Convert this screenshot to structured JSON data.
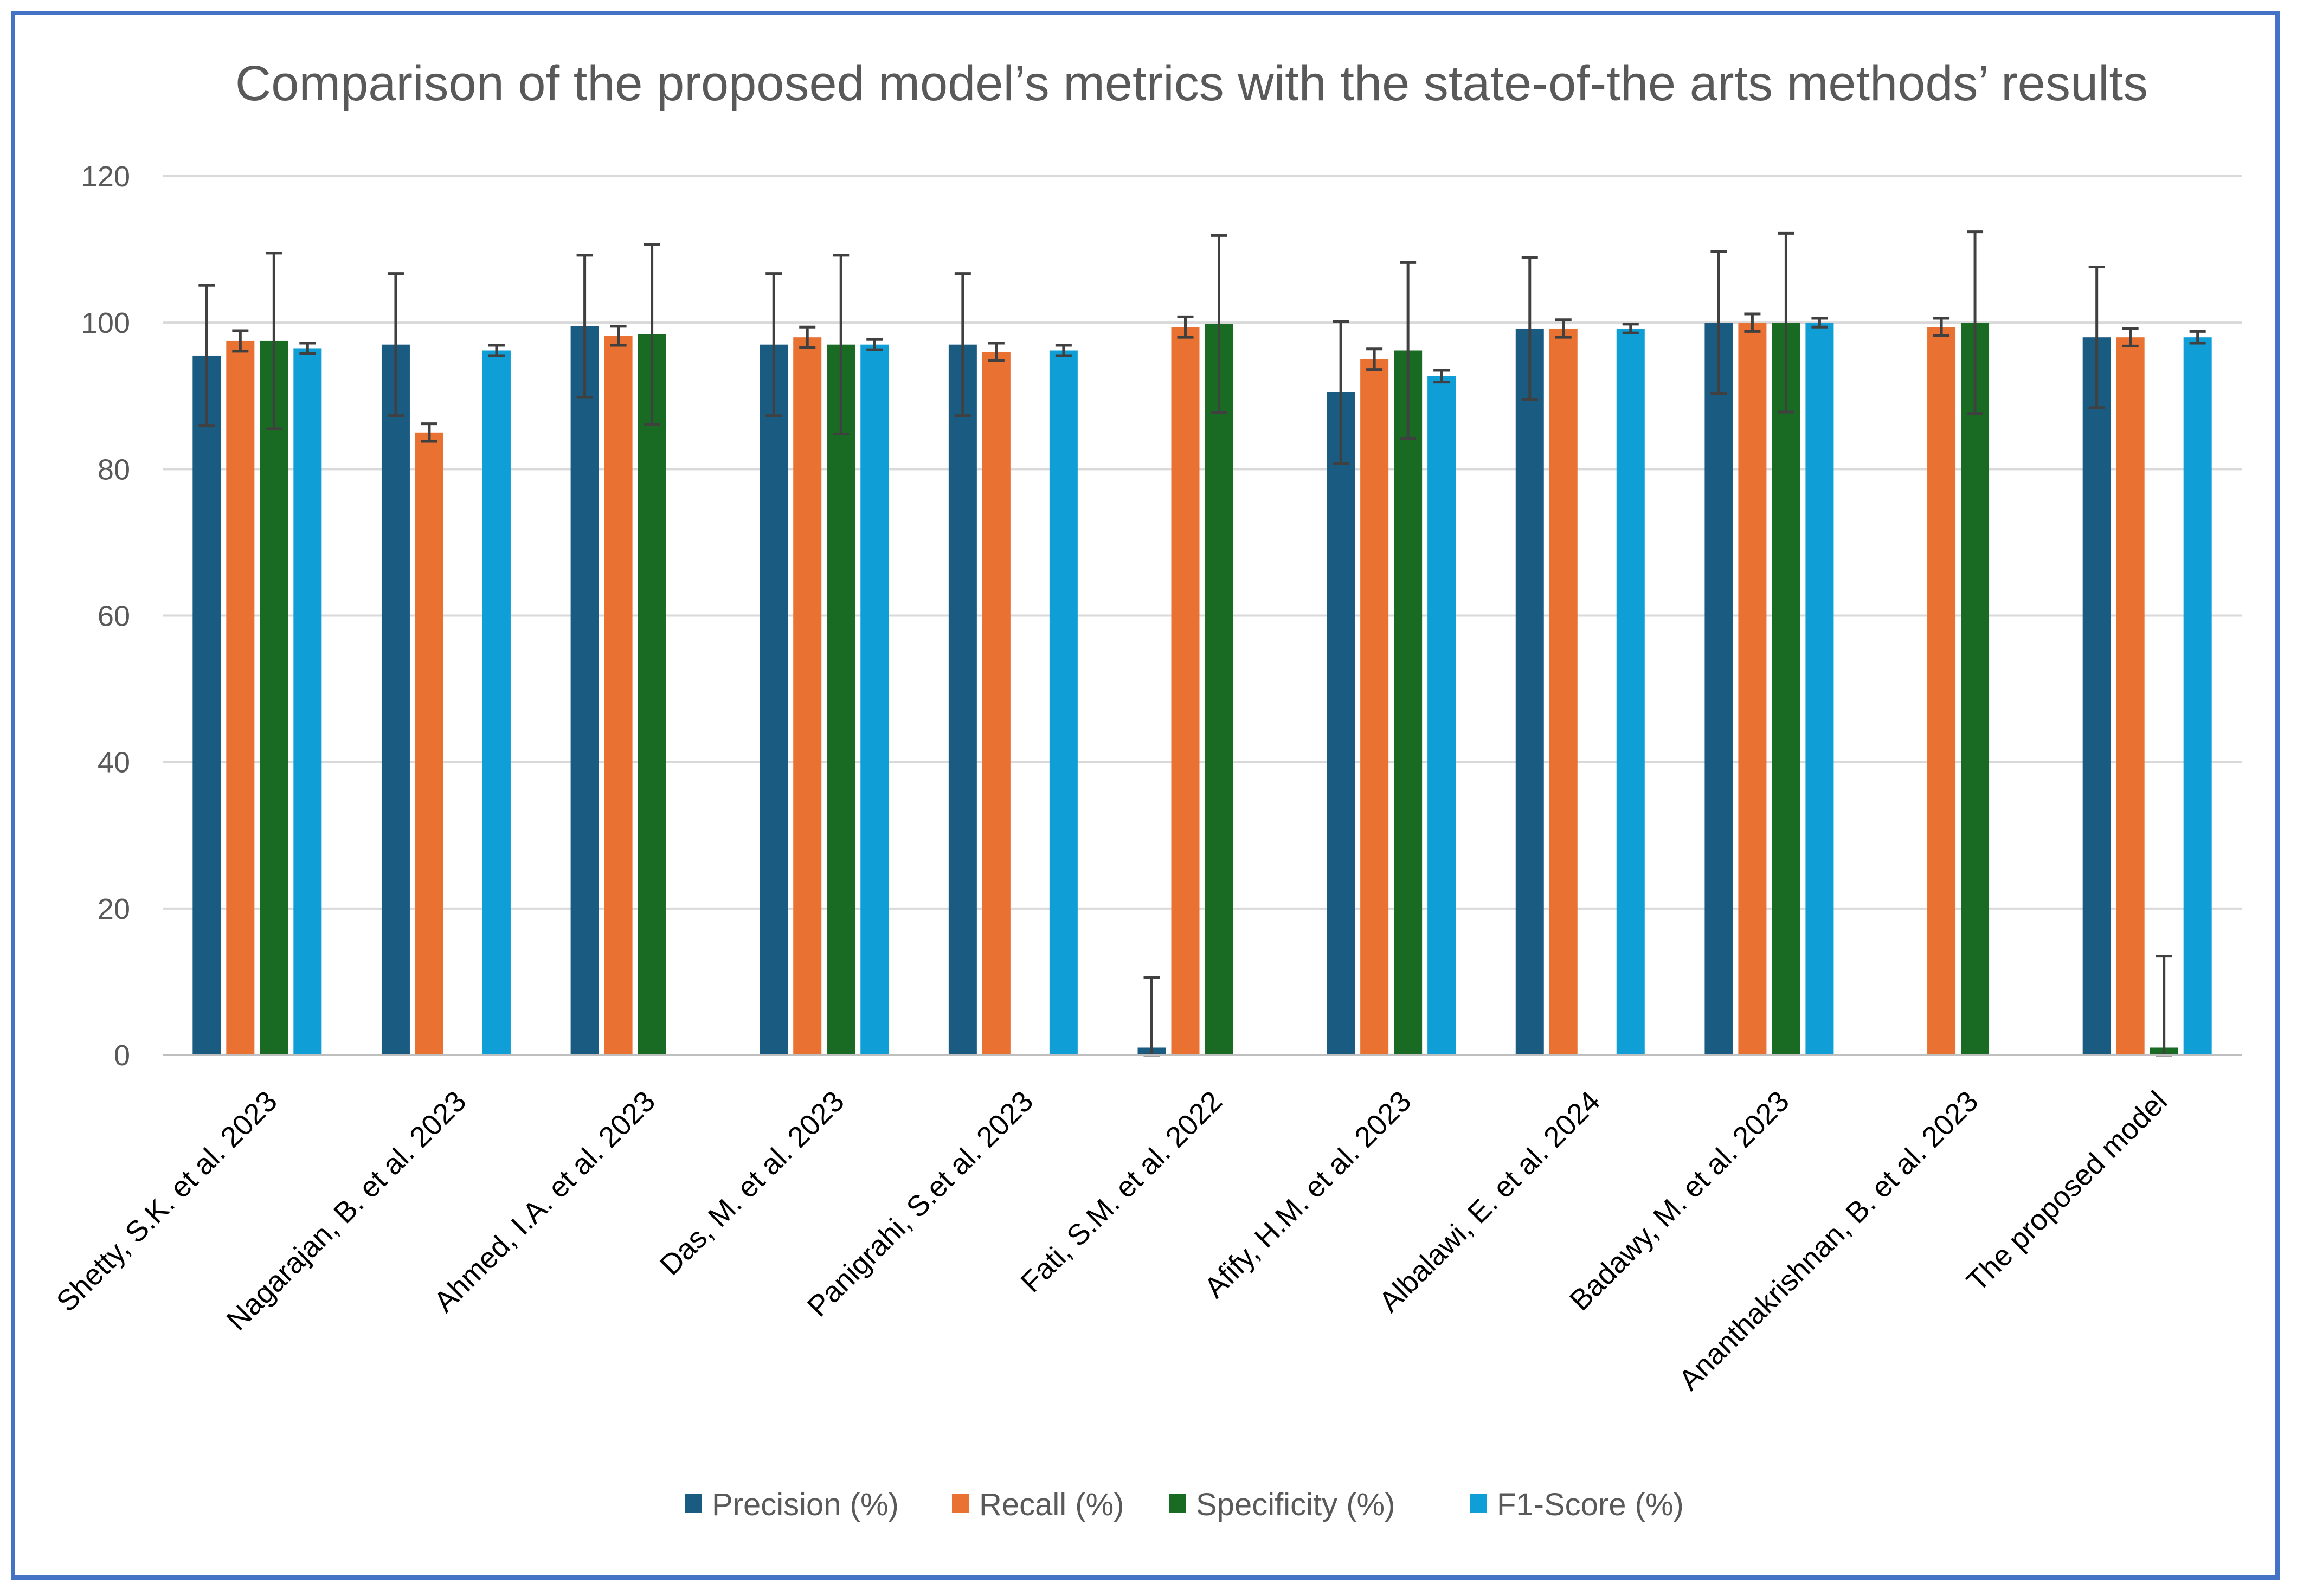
{
  "chart_data": {
    "type": "bar",
    "title": "Comparison of the proposed model’s metrics with the state-of-the arts methods’ results",
    "xlabel": "",
    "ylabel": "",
    "ylim": [
      0,
      120
    ],
    "yticks": [
      0,
      20,
      40,
      60,
      80,
      100,
      120
    ],
    "grid": true,
    "legend_position": "bottom",
    "categories": [
      "Shetty, S.K. et al. 2023",
      "Nagarajan, B. et al. 2023",
      "Ahmed, I.A. et al. 2023",
      "Das, M. et al. 2023",
      "Panigrahi, S.et al. 2023",
      "Fati, S.M. et al. 2022",
      "Afify, H.M. et al. 2023",
      "Albalawi, E. et al. 2024",
      "Badawy, M. et al. 2023",
      "Ananthakrishnan, B. et al. 2023",
      "The proposed model"
    ],
    "series": [
      {
        "name": "Precision (%)",
        "color": "#1a5b82",
        "values": [
          95.5,
          97,
          99.5,
          97,
          97,
          1,
          90.5,
          99.2,
          100,
          null,
          98
        ],
        "errors": [
          9.6,
          9.7,
          9.7,
          9.7,
          9.7,
          9.6,
          9.7,
          9.7,
          9.7,
          null,
          9.6
        ]
      },
      {
        "name": "Recall (%)",
        "color": "#e97132",
        "values": [
          97.5,
          85,
          98.2,
          98,
          96,
          99.4,
          95,
          99.2,
          100,
          99.4,
          98
        ],
        "errors": [
          1.4,
          1.2,
          1.3,
          1.4,
          1.2,
          1.4,
          1.4,
          1.2,
          1.2,
          1.2,
          1.2
        ]
      },
      {
        "name": "Specificity (%)",
        "color": "#196b24",
        "values": [
          97.5,
          null,
          98.4,
          97,
          null,
          99.8,
          96.2,
          null,
          100,
          100,
          1
        ],
        "errors": [
          12,
          null,
          12.3,
          12.2,
          null,
          12.1,
          12,
          null,
          12.2,
          12.4,
          12.5
        ]
      },
      {
        "name": "F1-Score (%)",
        "color": "#0f9ed5",
        "values": [
          96.5,
          96.2,
          null,
          97,
          96.2,
          null,
          92.7,
          99.2,
          100,
          null,
          98
        ],
        "errors": [
          0.7,
          0.7,
          null,
          0.7,
          0.7,
          null,
          0.8,
          0.6,
          0.6,
          null,
          0.8
        ]
      }
    ]
  }
}
